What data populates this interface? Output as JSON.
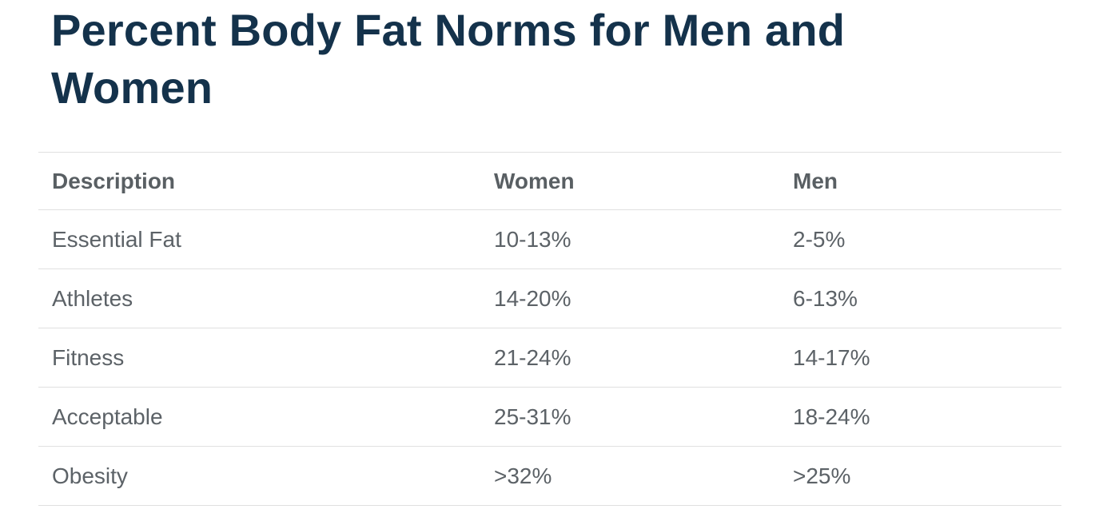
{
  "page": {
    "title": "Percent Body Fat Norms for Men and Women"
  },
  "table": {
    "columns": [
      "Description",
      "Women",
      "Men"
    ],
    "rows": [
      {
        "description": "Essential Fat",
        "women": "10-13%",
        "men": "2-5%"
      },
      {
        "description": "Athletes",
        "women": "14-20%",
        "men": "6-13%"
      },
      {
        "description": "Fitness",
        "women": "21-24%",
        "men": "14-17%"
      },
      {
        "description": "Acceptable",
        "women": "25-31%",
        "men": "18-24%"
      },
      {
        "description": "Obesity",
        "women": ">32%",
        "men": ">25%"
      }
    ]
  },
  "colors": {
    "title": "#14324b",
    "header_text": "#595f63",
    "body_text": "#5c6267",
    "divider": "#e0e0e0",
    "background": "#ffffff"
  }
}
